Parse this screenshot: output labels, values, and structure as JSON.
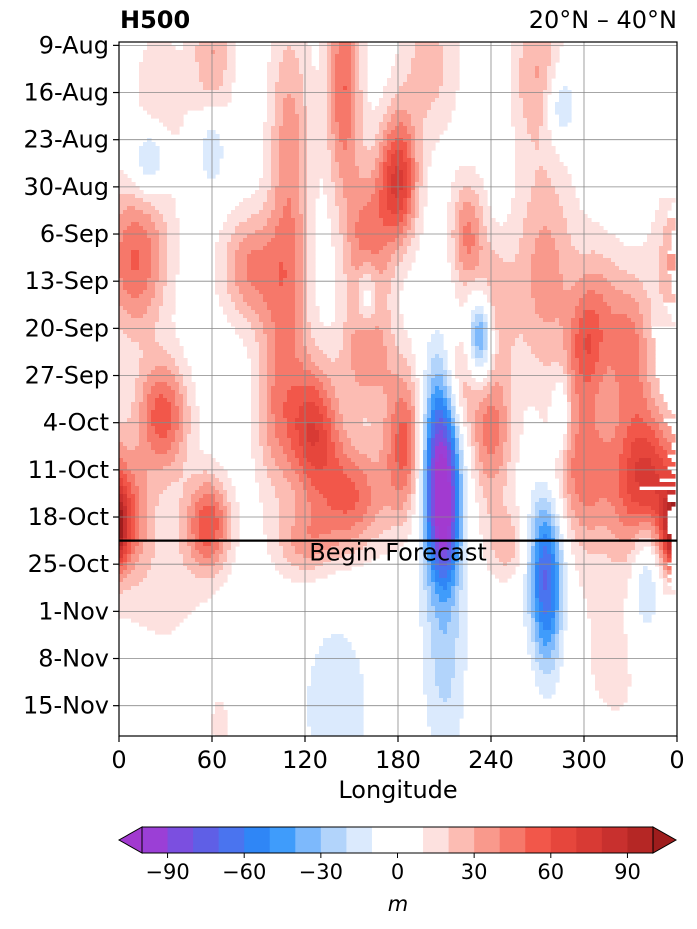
{
  "chart_data": {
    "type": "heatmap",
    "title_left": "H500",
    "title_right": "20°N – 40°N",
    "xlabel": "Longitude",
    "ylabel": "",
    "x_ticks": [
      "0",
      "60",
      "120",
      "180",
      "240",
      "300",
      "0"
    ],
    "x_tick_values": [
      0,
      60,
      120,
      180,
      240,
      300,
      360
    ],
    "xlim": [
      0,
      360
    ],
    "y_ticks": [
      "9-Aug",
      "16-Aug",
      "23-Aug",
      "30-Aug",
      "6-Sep",
      "13-Sep",
      "20-Sep",
      "27-Sep",
      "4-Oct",
      "11-Oct",
      "18-Oct",
      "25-Oct",
      "1-Nov",
      "8-Nov",
      "15-Nov"
    ],
    "y_tick_days": [
      0,
      7,
      14,
      21,
      28,
      35,
      42,
      49,
      56,
      63,
      70,
      77,
      84,
      91,
      98
    ],
    "ylim_days": [
      -0.5,
      102.5
    ],
    "y_direction": "time increases downward",
    "forecast_line": {
      "label": "Begin Forecast",
      "day": 73.5
    },
    "grid": true,
    "colorbar": {
      "label": "m",
      "ticks": [
        "−90",
        "−60",
        "−30",
        "0",
        "30",
        "60",
        "90"
      ],
      "tick_values": [
        -90,
        -60,
        -30,
        0,
        30,
        60,
        90
      ],
      "levels": [
        -100,
        -90,
        -80,
        -70,
        -60,
        -50,
        -40,
        -30,
        -20,
        -10,
        10,
        20,
        30,
        40,
        50,
        60,
        70,
        80,
        90,
        100
      ],
      "extend": "both",
      "colors": [
        "#9b3fd6",
        "#7b4fe0",
        "#5f5fe6",
        "#4a74ef",
        "#2f86f6",
        "#3f9cfb",
        "#7db9fc",
        "#b2d4fb",
        "#dbeafd",
        "#ffffff",
        "#fde1df",
        "#fcbcb3",
        "#f9998c",
        "#f6786a",
        "#f2574a",
        "#e6463c",
        "#d83a34",
        "#c8302e",
        "#b52725"
      ],
      "under_color": "#a23ad0",
      "over_color": "#9e1d1d"
    },
    "features": [
      {
        "lon": 207,
        "day": 62,
        "value": -95,
        "lon_width": 9,
        "day_width": 10
      },
      {
        "lon": 210,
        "day": 71,
        "value": -45,
        "lon_width": 6,
        "day_width": 6
      },
      {
        "lon": 233,
        "day": 43,
        "value": -65,
        "lon_width": 6,
        "day_width": 5
      },
      {
        "lon": 275,
        "day": 77,
        "value": -60,
        "lon_width": 8,
        "day_width": 8
      },
      {
        "lon": 277,
        "day": 86,
        "value": -25,
        "lon_width": 7,
        "day_width": 8
      },
      {
        "lon": 340,
        "day": 78,
        "value": -40,
        "lon_width": 7,
        "day_width": 7
      },
      {
        "lon": 20,
        "day": 17,
        "value": -40,
        "lon_width": 8,
        "day_width": 4
      },
      {
        "lon": 60,
        "day": 15,
        "value": -25,
        "lon_width": 6,
        "day_width": 4
      },
      {
        "lon": 285,
        "day": 9,
        "value": -30,
        "lon_width": 7,
        "day_width": 4
      },
      {
        "lon": 160,
        "day": 37,
        "value": -35,
        "lon_width": 5,
        "day_width": 4
      },
      {
        "lon": 285,
        "day": 55,
        "value": -30,
        "lon_width": 4,
        "day_width": 4
      },
      {
        "lon": 210,
        "day": 88,
        "value": -25,
        "lon_width": 10,
        "day_width": 14
      },
      {
        "lon": 140,
        "day": 98,
        "value": -15,
        "lon_width": 20,
        "day_width": 12
      },
      {
        "lon": 180,
        "day": 20,
        "value": 70,
        "lon_width": 9,
        "day_width": 7
      },
      {
        "lon": 340,
        "day": 65,
        "value": 75,
        "lon_width": 14,
        "day_width": 8
      },
      {
        "lon": 125,
        "day": 57,
        "value": 65,
        "lon_width": 12,
        "day_width": 7
      },
      {
        "lon": 185,
        "day": 59,
        "value": 55,
        "lon_width": 10,
        "day_width": 8
      },
      {
        "lon": 28,
        "day": 55,
        "value": 55,
        "lon_width": 12,
        "day_width": 6
      },
      {
        "lon": 10,
        "day": 32,
        "value": 50,
        "lon_width": 15,
        "day_width": 8
      },
      {
        "lon": 58,
        "day": 71,
        "value": 55,
        "lon_width": 10,
        "day_width": 5
      },
      {
        "lon": 150,
        "day": 67,
        "value": 50,
        "lon_width": 16,
        "day_width": 6
      },
      {
        "lon": 85,
        "day": 33,
        "value": 40,
        "lon_width": 14,
        "day_width": 6
      },
      {
        "lon": 160,
        "day": 30,
        "value": 45,
        "lon_width": 10,
        "day_width": 8
      },
      {
        "lon": 145,
        "day": 6,
        "value": 50,
        "lon_width": 8,
        "day_width": 12
      },
      {
        "lon": 110,
        "day": 15,
        "value": 35,
        "lon_width": 10,
        "day_width": 14
      },
      {
        "lon": 275,
        "day": 34,
        "value": 35,
        "lon_width": 15,
        "day_width": 12
      },
      {
        "lon": 225,
        "day": 28,
        "value": 40,
        "lon_width": 8,
        "day_width": 6
      },
      {
        "lon": 240,
        "day": 57,
        "value": 45,
        "lon_width": 10,
        "day_width": 8
      },
      {
        "lon": 330,
        "day": 45,
        "value": 40,
        "lon_width": 10,
        "day_width": 8
      },
      {
        "lon": 300,
        "day": 63,
        "value": 45,
        "lon_width": 14,
        "day_width": 8
      },
      {
        "lon": 300,
        "day": 45,
        "value": 35,
        "lon_width": 8,
        "day_width": 6
      },
      {
        "lon": 5,
        "day": 70,
        "value": 40,
        "lon_width": 10,
        "day_width": 6
      },
      {
        "lon": 358,
        "day": 72,
        "value": 60,
        "lon_width": 5,
        "day_width": 4
      },
      {
        "lon": 240,
        "day": 38,
        "value": 30,
        "lon_width": 10,
        "day_width": 6
      },
      {
        "lon": 160,
        "day": 46,
        "value": 35,
        "lon_width": 12,
        "day_width": 6
      },
      {
        "lon": 310,
        "day": 40,
        "value": 30,
        "lon_width": 10,
        "day_width": 8
      },
      {
        "lon": 60,
        "day": 1,
        "value": 30,
        "lon_width": 10,
        "day_width": 8
      },
      {
        "lon": 200,
        "day": 3,
        "value": 25,
        "lon_width": 14,
        "day_width": 8
      },
      {
        "lon": 270,
        "day": 4,
        "value": 30,
        "lon_width": 12,
        "day_width": 8
      },
      {
        "lon": 100,
        "day": 54,
        "value": 30,
        "lon_width": 10,
        "day_width": 10
      },
      {
        "lon": 220,
        "day": 50,
        "value": 30,
        "lon_width": 8,
        "day_width": 6
      },
      {
        "lon": 120,
        "day": 74,
        "value": 30,
        "lon_width": 14,
        "day_width": 4
      },
      {
        "lon": 250,
        "day": 74,
        "value": 25,
        "lon_width": 10,
        "day_width": 4
      },
      {
        "lon": 30,
        "day": 78,
        "value": 15,
        "lon_width": 20,
        "day_width": 10
      },
      {
        "lon": 320,
        "day": 90,
        "value": 12,
        "lon_width": 25,
        "day_width": 14
      },
      {
        "lon": 65,
        "day": 101,
        "value": 15,
        "lon_width": 5,
        "day_width": 4
      },
      {
        "lon": 110,
        "day": 38,
        "value": 25,
        "lon_width": 10,
        "day_width": 10
      },
      {
        "lon": 25,
        "day": 10,
        "value": 20,
        "lon_width": 12,
        "day_width": 10
      }
    ]
  }
}
